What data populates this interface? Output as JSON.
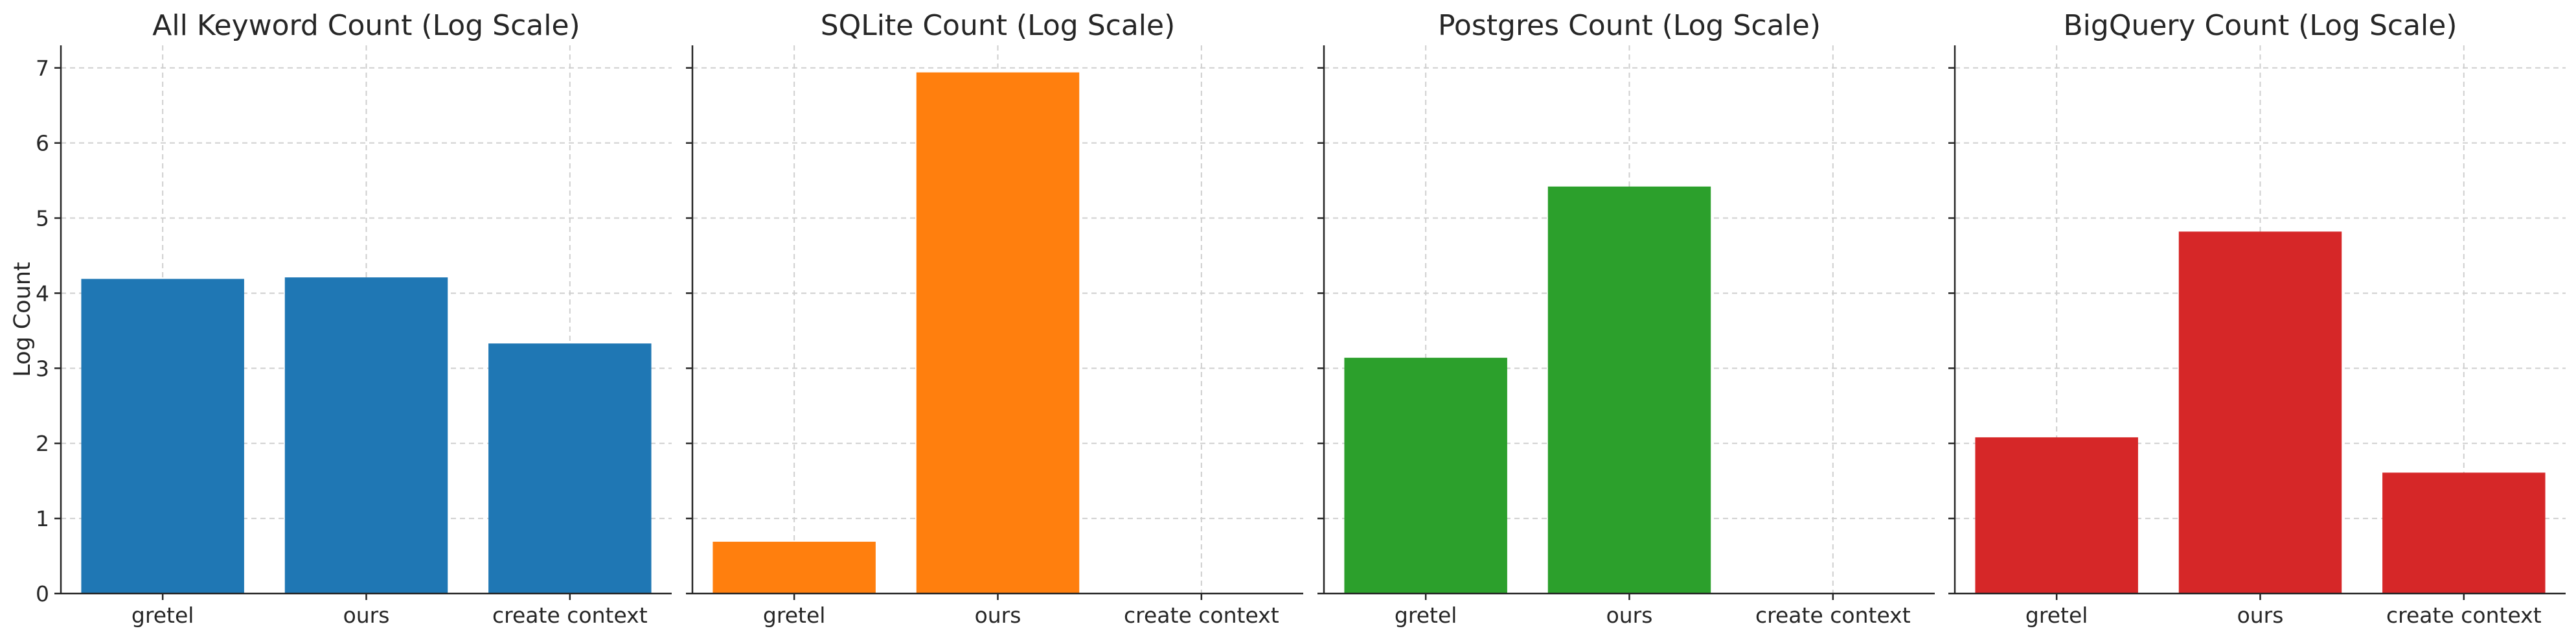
{
  "chart_data": [
    {
      "type": "bar",
      "title": "All Keyword Count (Log Scale)",
      "ylabel": "Log Count",
      "xlabel": "",
      "categories": [
        "gretel",
        "ours",
        "create context"
      ],
      "values": [
        4.19,
        4.21,
        3.33
      ],
      "color": "#1f77b4",
      "ylim": [
        0,
        7.3
      ],
      "yticks": [
        0,
        1,
        2,
        3,
        4,
        5,
        6,
        7
      ],
      "grid": true
    },
    {
      "type": "bar",
      "title": "SQLite Count (Log Scale)",
      "ylabel": "",
      "xlabel": "",
      "categories": [
        "gretel",
        "ours",
        "create context"
      ],
      "values": [
        0.69,
        6.94,
        0
      ],
      "color": "#ff7f0e",
      "ylim": [
        0,
        7.3
      ],
      "yticks": [
        0,
        1,
        2,
        3,
        4,
        5,
        6,
        7
      ],
      "grid": true
    },
    {
      "type": "bar",
      "title": "Postgres Count (Log Scale)",
      "ylabel": "",
      "xlabel": "",
      "categories": [
        "gretel",
        "ours",
        "create context"
      ],
      "values": [
        3.14,
        5.42,
        0
      ],
      "color": "#2ca02c",
      "ylim": [
        0,
        7.3
      ],
      "yticks": [
        0,
        1,
        2,
        3,
        4,
        5,
        6,
        7
      ],
      "grid": true
    },
    {
      "type": "bar",
      "title": "BigQuery Count (Log Scale)",
      "ylabel": "",
      "xlabel": "",
      "categories": [
        "gretel",
        "ours",
        "create context"
      ],
      "values": [
        2.08,
        4.82,
        1.61
      ],
      "color": "#d62728",
      "ylim": [
        0,
        7.3
      ],
      "yticks": [
        0,
        1,
        2,
        3,
        4,
        5,
        6,
        7
      ],
      "grid": true
    }
  ]
}
